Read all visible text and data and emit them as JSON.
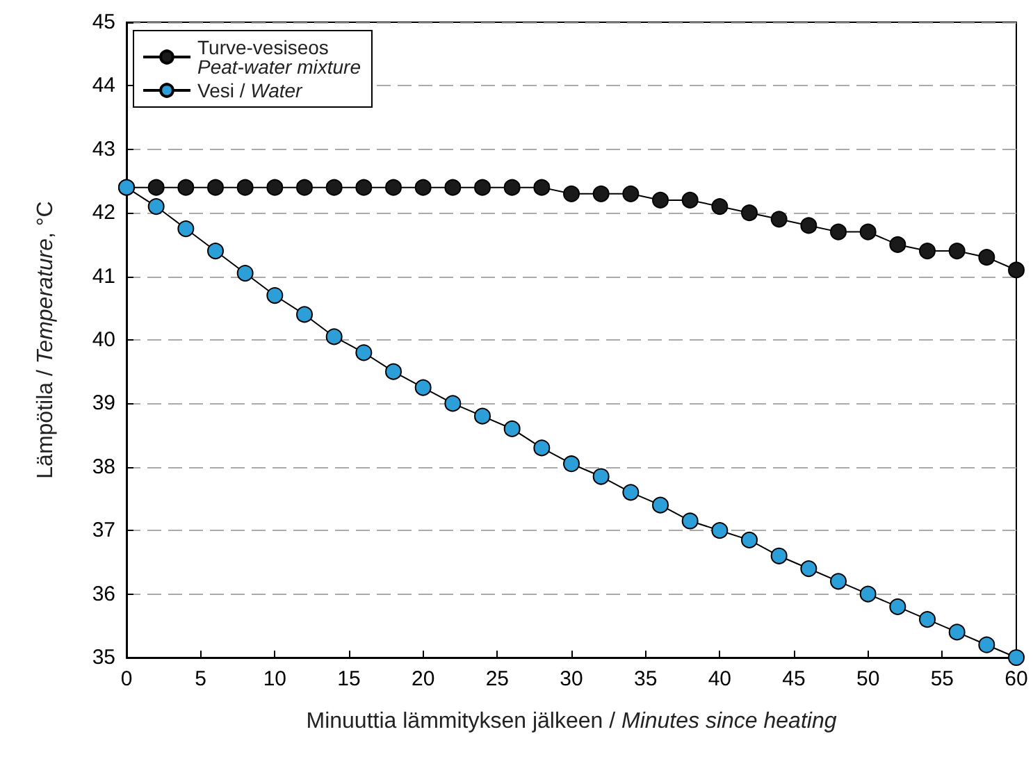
{
  "chart_data": {
    "type": "line",
    "xlabel": "Minuuttia lämmityksen jälkeen / Minutes since heating",
    "ylabel": "Lämpötila / Temperature, °C",
    "x": [
      0,
      2,
      4,
      6,
      8,
      10,
      12,
      14,
      16,
      18,
      20,
      22,
      24,
      26,
      28,
      30,
      32,
      34,
      36,
      38,
      40,
      42,
      44,
      46,
      48,
      50,
      52,
      54,
      56,
      58,
      60
    ],
    "series": [
      {
        "name": "Turve-vesiseos\nPeat-water mixture",
        "color": "#1a1a1a",
        "values": [
          42.4,
          42.4,
          42.4,
          42.4,
          42.4,
          42.4,
          42.4,
          42.4,
          42.4,
          42.4,
          42.4,
          42.4,
          42.4,
          42.4,
          42.4,
          42.3,
          42.3,
          42.3,
          42.2,
          42.2,
          42.1,
          42.0,
          41.9,
          41.8,
          41.7,
          41.7,
          41.5,
          41.4,
          41.4,
          41.3,
          41.1
        ]
      },
      {
        "name": "Vesi / Water",
        "color": "#2d9fd8",
        "values": [
          42.4,
          42.1,
          41.75,
          41.4,
          41.05,
          40.7,
          40.4,
          40.05,
          39.8,
          39.5,
          39.25,
          39.0,
          38.8,
          38.6,
          38.3,
          38.05,
          37.85,
          37.6,
          37.4,
          37.15,
          37.0,
          36.85,
          36.6,
          36.4,
          36.2,
          36.0,
          35.8,
          35.6,
          35.4,
          35.2,
          35.0
        ]
      }
    ],
    "xlim": [
      0,
      60
    ],
    "xticks": [
      0,
      5,
      10,
      15,
      20,
      25,
      30,
      35,
      40,
      45,
      50,
      55,
      60
    ],
    "ylim": [
      35,
      45
    ],
    "yticks": [
      35,
      36,
      37,
      38,
      39,
      40,
      41,
      42,
      43,
      44,
      45
    ],
    "grid": "y",
    "legend": "top left",
    "marker": "circle",
    "line_style": "solid"
  }
}
